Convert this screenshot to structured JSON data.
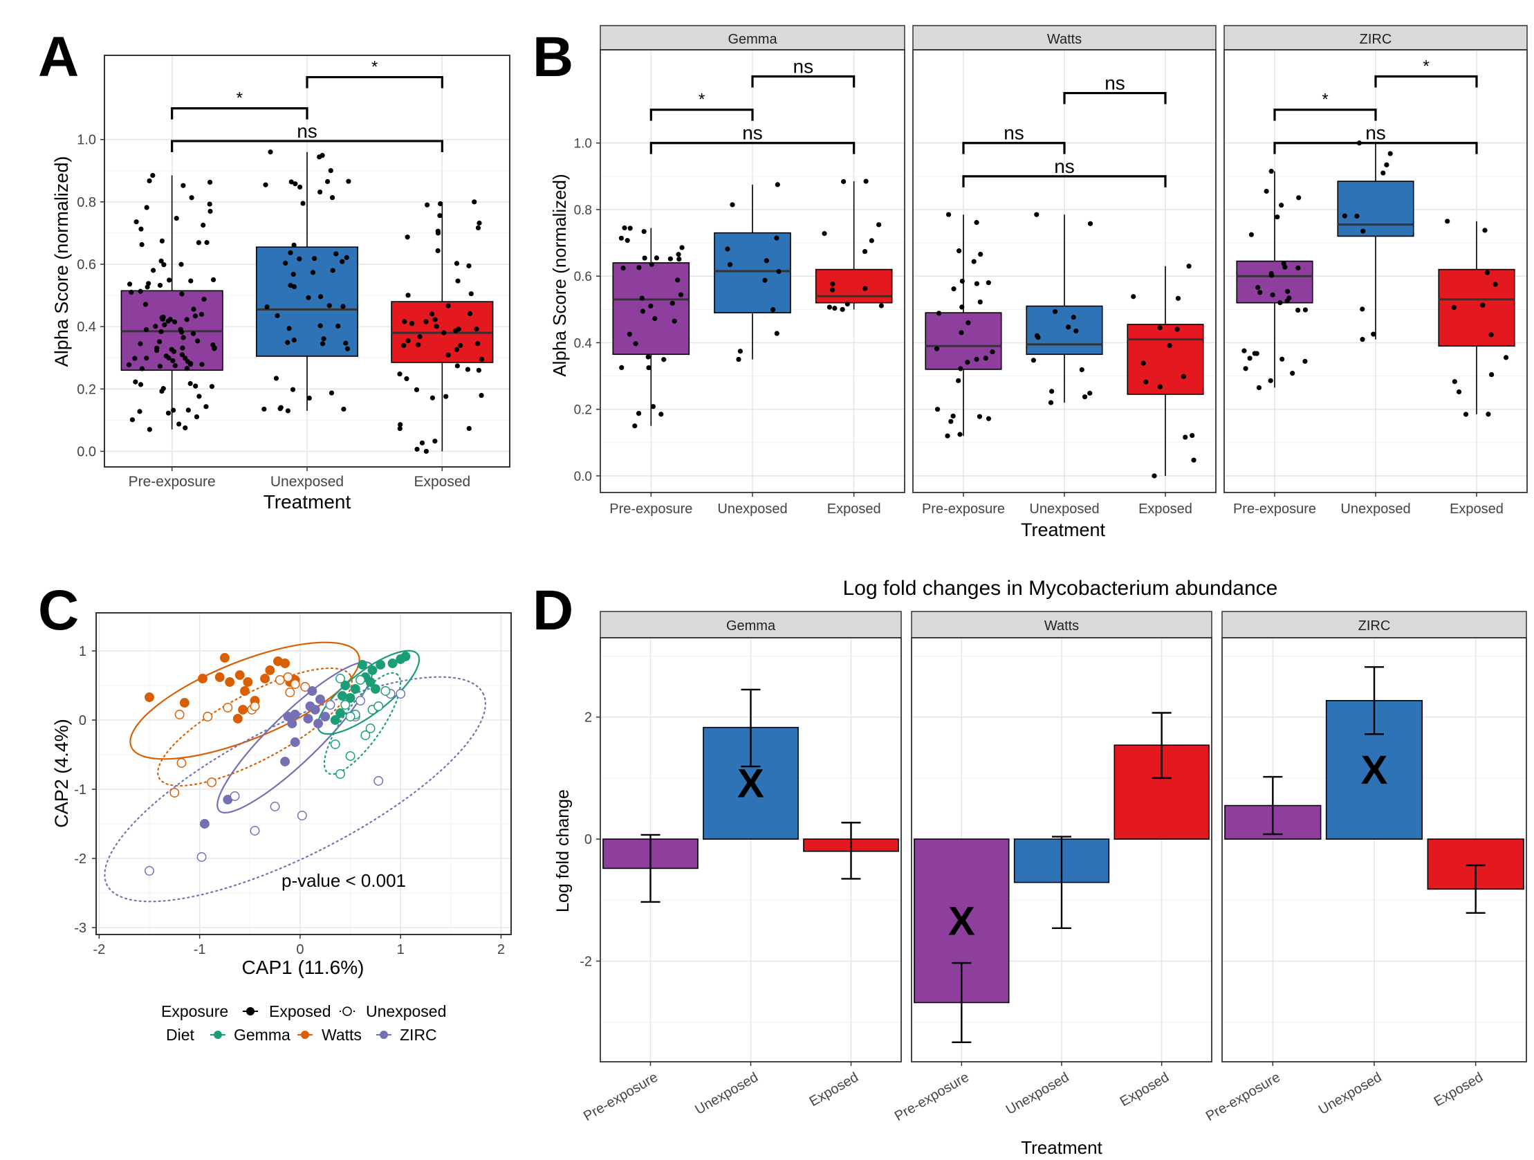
{
  "colors": {
    "pre": "#8e3f9e",
    "unexp": "#2f73b7",
    "exp": "#e4191f",
    "gemma": "#1b9e77",
    "watts": "#d95f02",
    "zirc": "#7570b3",
    "strip": "#d9d9d9",
    "grid": "#e6e6e6"
  },
  "panel_labels": {
    "a": "A",
    "b": "B",
    "c": "C",
    "d": "D"
  },
  "common": {
    "treatment": "Treatment",
    "alpha_ylabel": "Alpha Score (normalized)",
    "categories": [
      "Pre-exposure",
      "Unexposed",
      "Exposed"
    ]
  },
  "chart_data": [
    {
      "id": "A",
      "type": "box",
      "xlabel": "Treatment",
      "ylabel": "Alpha Score (normalized)",
      "ylim": [
        -0.05,
        1.27
      ],
      "yticks": [
        0.0,
        0.2,
        0.4,
        0.6,
        0.8,
        1.0
      ],
      "grid": true,
      "categories": [
        "Pre-exposure",
        "Unexposed",
        "Exposed"
      ],
      "boxes": [
        {
          "q1": 0.26,
          "median": 0.385,
          "q3": 0.515,
          "min": 0.07,
          "max": 0.885
        },
        {
          "q1": 0.305,
          "median": 0.455,
          "q3": 0.655,
          "min": 0.13,
          "max": 0.96
        },
        {
          "q1": 0.285,
          "median": 0.38,
          "q3": 0.48,
          "min": 0.0,
          "max": 0.8
        }
      ],
      "points_per_group": [
        95,
        50,
        52
      ],
      "comparisons": [
        {
          "from": 0,
          "to": 1,
          "label": "*",
          "y": 1.1
        },
        {
          "from": 1,
          "to": 2,
          "label": "*",
          "y": 1.2
        },
        {
          "from": 0,
          "to": 2,
          "label": "ns",
          "y": 0.995
        }
      ]
    },
    {
      "id": "B",
      "type": "box",
      "facets": [
        "Gemma",
        "Watts",
        "ZIRC"
      ],
      "xlabel": "Treatment",
      "ylabel": "Alpha Score (normalized)",
      "ylim": [
        -0.05,
        1.28
      ],
      "yticks": [
        0.0,
        0.2,
        0.4,
        0.6,
        0.8,
        1.0
      ],
      "grid": true,
      "categories": [
        "Pre-exposure",
        "Unexposed",
        "Exposed"
      ],
      "panels": [
        {
          "boxes": [
            {
              "q1": 0.365,
              "median": 0.53,
              "q3": 0.64,
              "min": 0.15,
              "max": 0.745
            },
            {
              "q1": 0.49,
              "median": 0.615,
              "q3": 0.73,
              "min": 0.35,
              "max": 0.875
            },
            {
              "q1": 0.52,
              "median": 0.54,
              "q3": 0.62,
              "min": 0.5,
              "max": 0.885
            }
          ],
          "points_per_group": [
            32,
            12,
            14
          ],
          "comparisons": [
            {
              "from": 0,
              "to": 1,
              "label": "*",
              "y": 1.1
            },
            {
              "from": 1,
              "to": 2,
              "label": "ns",
              "y": 1.2
            },
            {
              "from": 0,
              "to": 2,
              "label": "ns",
              "y": 1.0
            }
          ]
        },
        {
          "boxes": [
            {
              "q1": 0.32,
              "median": 0.39,
              "q3": 0.49,
              "min": 0.12,
              "max": 0.785
            },
            {
              "q1": 0.365,
              "median": 0.395,
              "q3": 0.51,
              "min": 0.22,
              "max": 0.785
            },
            {
              "q1": 0.245,
              "median": 0.41,
              "q3": 0.455,
              "min": 0.0,
              "max": 0.63
            }
          ],
          "points_per_group": [
            28,
            14,
            14
          ],
          "comparisons": [
            {
              "from": 1,
              "to": 2,
              "label": "ns",
              "y": 1.15
            },
            {
              "from": 0,
              "to": 1,
              "label": "ns",
              "y": 1.0
            },
            {
              "from": 0,
              "to": 2,
              "label": "ns",
              "y": 0.9
            }
          ]
        },
        {
          "boxes": [
            {
              "q1": 0.52,
              "median": 0.6,
              "q3": 0.645,
              "min": 0.265,
              "max": 0.915
            },
            {
              "q1": 0.72,
              "median": 0.755,
              "q3": 0.885,
              "min": 0.41,
              "max": 1.0
            },
            {
              "q1": 0.39,
              "median": 0.53,
              "q3": 0.62,
              "min": 0.185,
              "max": 0.765
            }
          ],
          "points_per_group": [
            30,
            10,
            13
          ],
          "comparisons": [
            {
              "from": 0,
              "to": 1,
              "label": "*",
              "y": 1.1
            },
            {
              "from": 1,
              "to": 2,
              "label": "*",
              "y": 1.2
            },
            {
              "from": 0,
              "to": 2,
              "label": "ns",
              "y": 1.0
            }
          ]
        }
      ]
    },
    {
      "id": "C",
      "type": "scatter",
      "xlabel": "CAP1 (11.6%)",
      "ylabel": "CAP2 (4.4%)",
      "xlim": [
        -2.03,
        2.1
      ],
      "ylim": [
        -3.1,
        1.55
      ],
      "xticks": [
        -2,
        -1,
        0,
        1,
        2
      ],
      "yticks": [
        -3,
        -2,
        -1,
        0,
        1
      ],
      "grid": true,
      "annotation": "p-value < 0.001",
      "legend": {
        "exposure_title": "Exposure",
        "exposed": "Exposed",
        "unexposed": "Unexposed",
        "diet_title": "Diet",
        "gemma": "Gemma",
        "watts": "Watts",
        "zirc": "ZIRC",
        "placement": "bottom"
      },
      "series": [
        {
          "name": "Watts",
          "exposure": "Exposed",
          "points": [
            [
              -1.5,
              0.33
            ],
            [
              -1.15,
              0.25
            ],
            [
              -0.97,
              0.6
            ],
            [
              -0.8,
              0.62
            ],
            [
              -0.75,
              0.9
            ],
            [
              -0.7,
              0.55
            ],
            [
              -0.6,
              0.65
            ],
            [
              -0.52,
              0.55
            ],
            [
              -0.55,
              0.42
            ],
            [
              -0.3,
              0.72
            ],
            [
              -0.35,
              0.6
            ],
            [
              -0.22,
              0.85
            ],
            [
              -0.15,
              0.82
            ],
            [
              -0.57,
              0.15
            ],
            [
              -0.62,
              0.02
            ],
            [
              -0.45,
              0.28
            ],
            [
              -0.1,
              0.55
            ],
            [
              -0.05,
              0.58
            ]
          ]
        },
        {
          "name": "Watts",
          "exposure": "Unexposed",
          "points": [
            [
              -1.25,
              -1.05
            ],
            [
              -1.2,
              0.08
            ],
            [
              -0.92,
              0.05
            ],
            [
              -0.88,
              -0.9
            ],
            [
              -0.72,
              0.18
            ],
            [
              -0.48,
              0.15
            ],
            [
              -0.45,
              0.2
            ],
            [
              -0.1,
              0.4
            ],
            [
              -0.12,
              0.62
            ],
            [
              -0.05,
              0.52
            ],
            [
              0.05,
              0.48
            ],
            [
              -0.2,
              0.58
            ],
            [
              -1.18,
              -0.62
            ]
          ]
        },
        {
          "name": "ZIRC",
          "exposure": "Exposed",
          "points": [
            [
              -0.72,
              -1.15
            ],
            [
              -0.95,
              -1.5
            ],
            [
              -0.15,
              -0.6
            ],
            [
              -0.05,
              -0.32
            ],
            [
              0.08,
              0.02
            ],
            [
              0.1,
              0.2
            ],
            [
              0.12,
              0.42
            ],
            [
              0.15,
              0.15
            ],
            [
              0.18,
              -0.05
            ],
            [
              0.2,
              0.3
            ],
            [
              -0.08,
              -0.05
            ],
            [
              -0.05,
              0.08
            ],
            [
              0.25,
              0.05
            ],
            [
              -0.12,
              0.05
            ]
          ]
        },
        {
          "name": "ZIRC",
          "exposure": "Unexposed",
          "points": [
            [
              -1.5,
              -2.18
            ],
            [
              -0.98,
              -1.98
            ],
            [
              -0.45,
              -1.6
            ],
            [
              0.02,
              -1.38
            ],
            [
              -0.25,
              -1.25
            ],
            [
              -0.65,
              -1.1
            ],
            [
              0.78,
              -0.88
            ],
            [
              0.3,
              0.22
            ],
            [
              0.55,
              0.05
            ],
            [
              0.6,
              0.28
            ],
            [
              0.9,
              0.38
            ],
            [
              1.0,
              0.38
            ]
          ]
        },
        {
          "name": "Gemma",
          "exposure": "Exposed",
          "points": [
            [
              0.42,
              0.35
            ],
            [
              0.55,
              0.45
            ],
            [
              0.45,
              0.5
            ],
            [
              0.65,
              0.62
            ],
            [
              0.72,
              0.72
            ],
            [
              0.8,
              0.8
            ],
            [
              0.92,
              0.82
            ],
            [
              1.0,
              0.88
            ],
            [
              1.05,
              0.92
            ],
            [
              0.7,
              0.55
            ],
            [
              0.5,
              0.32
            ],
            [
              0.4,
              0.1
            ],
            [
              0.35,
              0.0
            ],
            [
              0.75,
              0.45
            ],
            [
              0.62,
              0.8
            ]
          ]
        },
        {
          "name": "Gemma",
          "exposure": "Unexposed",
          "points": [
            [
              0.35,
              -0.35
            ],
            [
              0.4,
              -0.78
            ],
            [
              0.5,
              -0.52
            ],
            [
              0.55,
              0.08
            ],
            [
              0.5,
              0.05
            ],
            [
              0.7,
              -0.12
            ],
            [
              0.72,
              0.15
            ],
            [
              0.78,
              0.2
            ],
            [
              0.85,
              0.42
            ],
            [
              0.65,
              -0.22
            ],
            [
              0.6,
              0.58
            ],
            [
              0.4,
              0.6
            ],
            [
              0.45,
              0.22
            ]
          ]
        }
      ],
      "ellipses": [
        {
          "name": "Watts",
          "exposure": "Exposed",
          "center": [
            -0.55,
            0.28
          ],
          "axes": [
            1.22,
            0.56
          ],
          "angle_deg": 22
        },
        {
          "name": "Watts",
          "exposure": "Unexposed",
          "center": [
            -0.45,
            -0.1
          ],
          "axes": [
            1.08,
            0.48
          ],
          "angle_deg": 28
        },
        {
          "name": "ZIRC",
          "exposure": "Exposed",
          "center": [
            -0.05,
            -0.25
          ],
          "axes": [
            1.05,
            0.35
          ],
          "angle_deg": 44
        },
        {
          "name": "ZIRC",
          "exposure": "Unexposed",
          "center": [
            -0.05,
            -1.0
          ],
          "axes": [
            2.1,
            0.95
          ],
          "angle_deg": 27
        },
        {
          "name": "Gemma",
          "exposure": "Exposed",
          "center": [
            0.68,
            0.4
          ],
          "axes": [
            0.62,
            0.3
          ],
          "angle_deg": 38
        },
        {
          "name": "Gemma",
          "exposure": "Unexposed",
          "center": [
            0.62,
            -0.05
          ],
          "axes": [
            0.6,
            0.28
          ],
          "angle_deg": 55
        }
      ]
    },
    {
      "id": "D",
      "type": "bar",
      "title": "Log fold changes in Mycobacterium abundance",
      "facets": [
        "Gemma",
        "Watts",
        "ZIRC"
      ],
      "xlabel": "Treatment",
      "ylabel": "Log fold change",
      "ylim": [
        -3.65,
        3.3
      ],
      "yticks": [
        -2,
        0,
        2
      ],
      "grid": true,
      "categories": [
        "Pre-exposure",
        "Unexposed",
        "Exposed"
      ],
      "panels": [
        {
          "values": [
            -0.48,
            1.83,
            -0.2
          ],
          "err_low": [
            -1.03,
            1.19,
            -0.65
          ],
          "err_high": [
            0.07,
            2.45,
            0.27
          ],
          "marked": [
            false,
            true,
            false
          ]
        },
        {
          "values": [
            -2.68,
            -0.71,
            1.54
          ],
          "err_low": [
            -3.33,
            -1.46,
            1.0
          ],
          "err_high": [
            -2.03,
            0.04,
            2.07
          ],
          "marked": [
            true,
            false,
            false
          ]
        },
        {
          "values": [
            0.55,
            2.27,
            -0.82
          ],
          "err_low": [
            0.08,
            1.72,
            -1.21
          ],
          "err_high": [
            1.02,
            2.82,
            -0.43
          ],
          "marked": [
            false,
            true,
            false
          ]
        }
      ],
      "mark_label": "X"
    }
  ]
}
